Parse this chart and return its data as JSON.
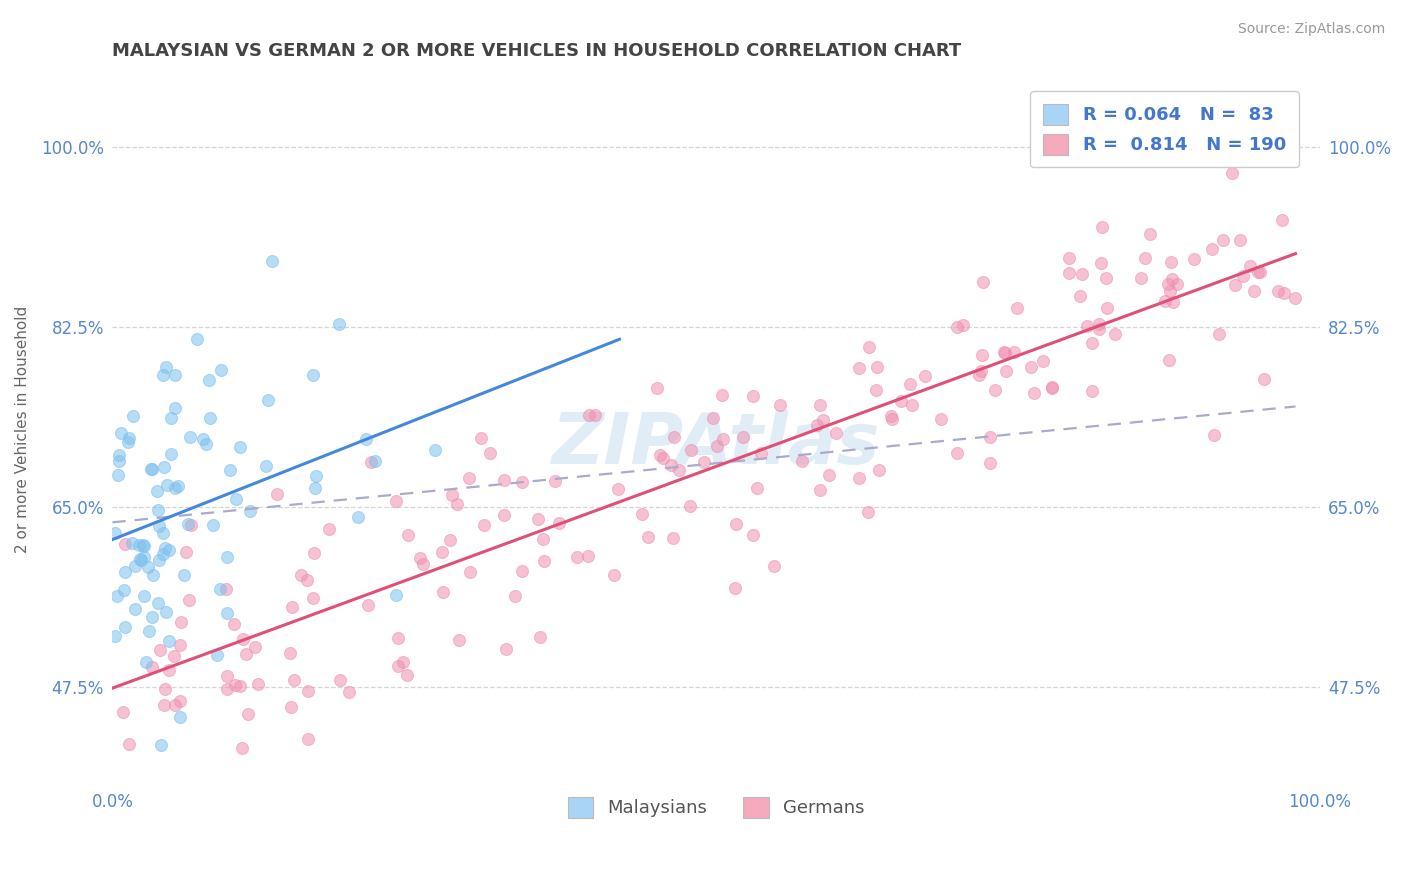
{
  "title": "MALAYSIAN VS GERMAN 2 OR MORE VEHICLES IN HOUSEHOLD CORRELATION CHART",
  "source": "Source: ZipAtlas.com",
  "ylabel": "2 or more Vehicles in Household",
  "xlim": [
    0.0,
    1.0
  ],
  "ylim": [
    0.38,
    1.07
  ],
  "xtick_labels": [
    "0.0%",
    "100.0%"
  ],
  "ytick_labels": [
    "47.5%",
    "65.0%",
    "82.5%",
    "100.0%"
  ],
  "ytick_positions": [
    0.475,
    0.65,
    0.825,
    1.0
  ],
  "legend_color1": "#aad4f5",
  "legend_color2": "#f5aabe",
  "dot_color_malaysian": "#7dc0f0",
  "dot_color_german": "#f090b0",
  "line_color_malaysian": "#4488dd",
  "line_color_german": "#e05075",
  "line_color_dashed": "#aaaacc",
  "background_color": "#ffffff",
  "grid_color": "#cccccc",
  "watermark_color": "#cce0f0",
  "title_color": "#444444",
  "axis_label_color": "#5588cc",
  "r_value_color": "#4477cc",
  "legend_label_color": "#555555"
}
